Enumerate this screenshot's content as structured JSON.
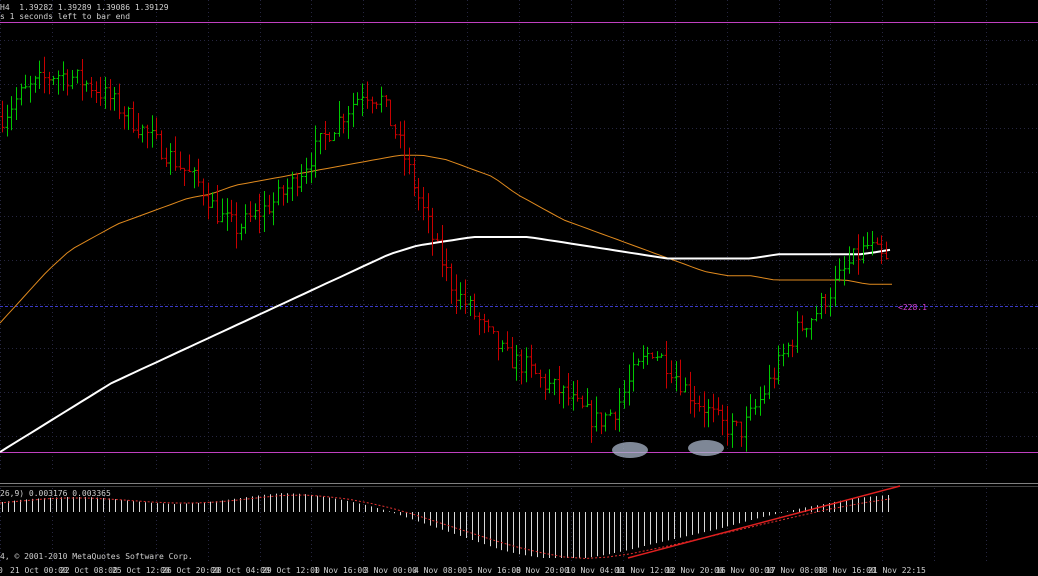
{
  "header": {
    "line1": "H4  1.39282 1.39289 1.39086 1.39129",
    "line2": "s 1 seconds left to bar end"
  },
  "macd_label": "26,9) 0.003176 0.003365",
  "copyright": "4, © 2001-2010 MetaQuotes Software Corp.",
  "price_label": "<228.1",
  "colors": {
    "background": "#000000",
    "bull": "#00c800",
    "bear": "#c80000",
    "ma_fast": "#e08a1e",
    "ma_slow": "#ffffff",
    "level_line": "#c040c0",
    "grid": "#262640",
    "ellipse": "#a8b4c8"
  },
  "chart_data": {
    "type": "bar",
    "symbol_timeframe": "H4",
    "x_tick_labels": [
      "0",
      "21 Oct 00:00",
      "22 Oct 08:00",
      "25 Oct 12:00",
      "26 Oct 20:00",
      "28 Oct 04:00",
      "29 Oct 12:00",
      "1 Nov 16:00",
      "3 Nov 00:00",
      "4 Nov 08:00",
      "5 Nov 16:00",
      "8 Nov 20:00",
      "10 Nov 04:00",
      "11 Nov 12:00",
      "12 Nov 20:00",
      "16 Nov 00:00",
      "17 Nov 08:00",
      "18 Nov 16:00",
      "21 Nov 22:15"
    ],
    "ohlc_trend": [
      0.78,
      0.83,
      0.86,
      0.88,
      0.87,
      0.85,
      0.82,
      0.78,
      0.74,
      0.7,
      0.66,
      0.62,
      0.55,
      0.52,
      0.55,
      0.58,
      0.62,
      0.68,
      0.74,
      0.79,
      0.84,
      0.82,
      0.72,
      0.6,
      0.48,
      0.38,
      0.33,
      0.27,
      0.22,
      0.2,
      0.16,
      0.14,
      0.1,
      0.07,
      0.1,
      0.18,
      0.24,
      0.2,
      0.14,
      0.1,
      0.06,
      0.05,
      0.12,
      0.2,
      0.28,
      0.32,
      0.38,
      0.44,
      0.48,
      0.44
    ],
    "ma_fast_trend": [
      0.3,
      0.36,
      0.42,
      0.47,
      0.5,
      0.53,
      0.55,
      0.57,
      0.59,
      0.6,
      0.62,
      0.63,
      0.64,
      0.65,
      0.66,
      0.67,
      0.68,
      0.69,
      0.69,
      0.68,
      0.66,
      0.64,
      0.6,
      0.57,
      0.54,
      0.52,
      0.5,
      0.48,
      0.46,
      0.44,
      0.42,
      0.41,
      0.41,
      0.4,
      0.4,
      0.4,
      0.4,
      0.39,
      0.39
    ],
    "ma_slow_trend": [
      0.0,
      0.04,
      0.08,
      0.12,
      0.16,
      0.19,
      0.22,
      0.25,
      0.28,
      0.31,
      0.34,
      0.37,
      0.4,
      0.43,
      0.46,
      0.48,
      0.49,
      0.5,
      0.5,
      0.5,
      0.49,
      0.48,
      0.47,
      0.46,
      0.45,
      0.45,
      0.45,
      0.45,
      0.46,
      0.46,
      0.46,
      0.46,
      0.47
    ],
    "macd_histogram": [
      0.2,
      0.25,
      0.28,
      0.3,
      0.3,
      0.27,
      0.22,
      0.18,
      0.16,
      0.18,
      0.22,
      0.28,
      0.34,
      0.38,
      0.36,
      0.3,
      0.22,
      0.12,
      0.0,
      -0.15,
      -0.3,
      -0.45,
      -0.6,
      -0.75,
      -0.85,
      -0.92,
      -0.95,
      -0.92,
      -0.85,
      -0.76,
      -0.65,
      -0.55,
      -0.45,
      -0.35,
      -0.24,
      -0.12,
      -0.02,
      0.08,
      0.16,
      0.24,
      0.3,
      0.34
    ],
    "macd_signal": [
      0.18,
      0.22,
      0.26,
      0.28,
      0.28,
      0.26,
      0.23,
      0.2,
      0.18,
      0.18,
      0.2,
      0.24,
      0.29,
      0.33,
      0.34,
      0.31,
      0.26,
      0.18,
      0.08,
      -0.04,
      -0.18,
      -0.32,
      -0.46,
      -0.6,
      -0.72,
      -0.82,
      -0.9,
      -0.93,
      -0.9,
      -0.84,
      -0.75,
      -0.66,
      -0.56,
      -0.46,
      -0.36,
      -0.26,
      -0.16,
      -0.06,
      0.04,
      0.12,
      0.2,
      0.26
    ],
    "support_level": 0.0,
    "resistance_level": 1.0,
    "current_price_level": 0.4
  }
}
